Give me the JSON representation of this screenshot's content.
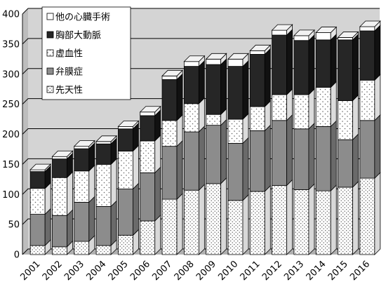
{
  "chart_data": {
    "type": "bar",
    "stacked": true,
    "categories": [
      "2001",
      "2002",
      "2003",
      "2004",
      "2005",
      "2006",
      "2007",
      "2008",
      "2009",
      "2010",
      "2011",
      "2012",
      "2013",
      "2014",
      "2015",
      "2016"
    ],
    "series": [
      {
        "name": "先天性",
        "pattern": "dots",
        "values": [
          15,
          13,
          22,
          15,
          32,
          56,
          92,
          107,
          118,
          90,
          105,
          115,
          108,
          106,
          112,
          127
        ]
      },
      {
        "name": "弁膜症",
        "pattern": "gray",
        "values": [
          52,
          52,
          65,
          65,
          77,
          80,
          88,
          97,
          97,
          95,
          101,
          108,
          101,
          107,
          79,
          96
        ]
      },
      {
        "name": "虚血性",
        "pattern": "sparse-dots",
        "values": [
          43,
          63,
          52,
          70,
          63,
          53,
          43,
          47,
          18,
          40,
          40,
          43,
          57,
          65,
          65,
          67
        ]
      },
      {
        "name": "胸部大動脈",
        "pattern": "black",
        "values": [
          28,
          31,
          37,
          34,
          37,
          42,
          68,
          62,
          83,
          88,
          87,
          99,
          90,
          79,
          101,
          82
        ]
      },
      {
        "name": "他の心臓手術",
        "pattern": "white",
        "values": [
          3,
          4,
          4,
          4,
          4,
          6,
          6,
          8,
          9,
          12,
          6,
          8,
          8,
          12,
          4,
          7
        ]
      }
    ],
    "y_ticks": [
      "0",
      "50",
      "100",
      "150",
      "200",
      "250",
      "300",
      "350",
      "400"
    ],
    "ylim": [
      0,
      400
    ],
    "grid": true,
    "legend_position": "top-left",
    "title": "",
    "xlabel": "",
    "ylabel": ""
  }
}
